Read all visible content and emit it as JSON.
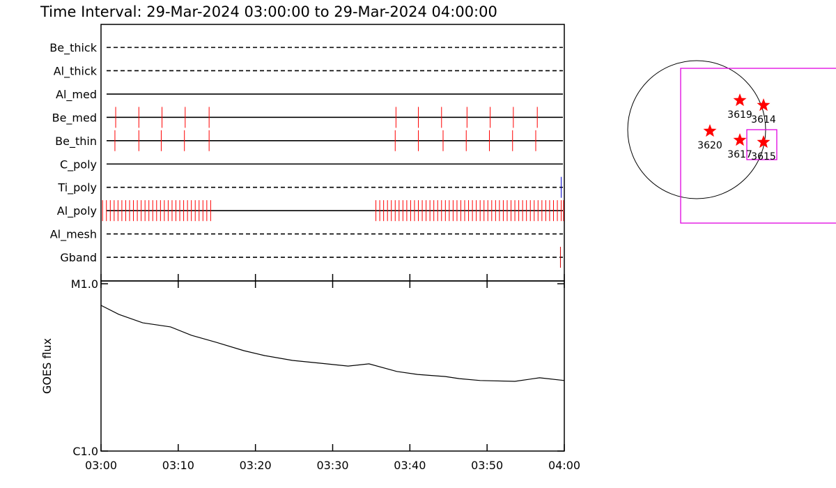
{
  "chart_data": [
    {
      "type": "timeline",
      "title": "Time Interval: 29-Mar-2024 03:00:00 to 29-Mar-2024 04:00:00",
      "xlim": [
        0,
        60
      ],
      "rows": [
        {
          "name": "Be_thick",
          "style": "dashed",
          "color": "#ff0000",
          "events": []
        },
        {
          "name": "Al_thick",
          "style": "dashed",
          "color": "#ff0000",
          "events": []
        },
        {
          "name": "Al_med",
          "style": "solid",
          "color": "#ff0000",
          "events": []
        },
        {
          "name": "Be_med",
          "style": "solid",
          "color": "#ff0000",
          "events": [
            1.9,
            4.9,
            7.9,
            10.9,
            14.0,
            38.2,
            41.1,
            44.1,
            47.4,
            50.4,
            53.4,
            56.5
          ]
        },
        {
          "name": "Be_thin",
          "style": "solid",
          "color": "#ff0000",
          "events": [
            1.8,
            4.9,
            7.8,
            10.8,
            14.0,
            38.1,
            41.1,
            44.3,
            47.3,
            50.3,
            53.3,
            56.3
          ]
        },
        {
          "name": "C_poly",
          "style": "solid",
          "color": "#ff0000",
          "events": []
        },
        {
          "name": "Ti_poly",
          "style": "dashed",
          "color": "#0000cc",
          "events": [
            59.6
          ]
        },
        {
          "name": "Al_poly",
          "style": "solid",
          "color": "#ff0000",
          "events": [
            0.2,
            0.7,
            1.2,
            1.7,
            2.2,
            2.7,
            3.2,
            3.7,
            4.2,
            4.7,
            5.2,
            5.7,
            6.2,
            6.7,
            7.2,
            7.7,
            8.2,
            8.7,
            9.2,
            9.7,
            10.2,
            10.7,
            11.2,
            11.7,
            12.2,
            12.7,
            13.2,
            13.7,
            14.2,
            35.6,
            36.1,
            36.6,
            37.1,
            37.6,
            38.1,
            38.6,
            39.1,
            39.6,
            40.1,
            40.6,
            41.1,
            41.6,
            42.1,
            42.6,
            43.1,
            43.6,
            44.1,
            44.6,
            45.1,
            45.6,
            46.1,
            46.6,
            47.1,
            47.6,
            48.1,
            48.6,
            49.1,
            49.6,
            50.1,
            50.6,
            51.1,
            51.6,
            52.1,
            52.6,
            53.1,
            53.6,
            54.1,
            54.6,
            55.1,
            55.6,
            56.1,
            56.6,
            57.1,
            57.6,
            58.1,
            58.6,
            59.1,
            59.6,
            59.9
          ]
        },
        {
          "name": "Al_mesh",
          "style": "dashed",
          "color": "#ff0000",
          "events": []
        },
        {
          "name": "Gband",
          "style": "dashed",
          "color": "#cc0000",
          "events": [
            59.5
          ]
        }
      ]
    },
    {
      "type": "line",
      "ylabel": "GOES flux",
      "color": "#000000",
      "log_scale": true,
      "xlim": [
        0,
        60
      ],
      "xticks": [
        {
          "value": 0,
          "label": "03:00"
        },
        {
          "value": 10,
          "label": "03:10"
        },
        {
          "value": 20,
          "label": "03:20"
        },
        {
          "value": 30,
          "label": "03:30"
        },
        {
          "value": 40,
          "label": "03:40"
        },
        {
          "value": 50,
          "label": "03:50"
        },
        {
          "value": 60,
          "label": "04:00"
        }
      ],
      "ylim": [
        1e-06,
        1e-05
      ],
      "yticks": [
        {
          "value": 1e-06,
          "label": "C1.0"
        },
        {
          "value": 1e-05,
          "label": "M1.0"
        }
      ],
      "x": [
        0,
        2.3,
        5.4,
        9.0,
        11.7,
        14.9,
        18.5,
        21.2,
        24.8,
        28.4,
        32.0,
        34.7,
        38.3,
        41.0,
        44.6,
        46.4,
        49.1,
        53.6,
        56.8,
        60
      ],
      "values": [
        7.43e-06,
        6.56e-06,
        5.84e-06,
        5.52e-06,
        4.92e-06,
        4.47e-06,
        3.98e-06,
        3.72e-06,
        3.48e-06,
        3.35e-06,
        3.22e-06,
        3.32e-06,
        2.99e-06,
        2.87e-06,
        2.79e-06,
        2.71e-06,
        2.64e-06,
        2.61e-06,
        2.74e-06,
        2.64e-06
      ]
    }
  ],
  "map": {
    "regions": [
      "3619",
      "3614",
      "3620",
      "3617",
      "3615"
    ]
  }
}
